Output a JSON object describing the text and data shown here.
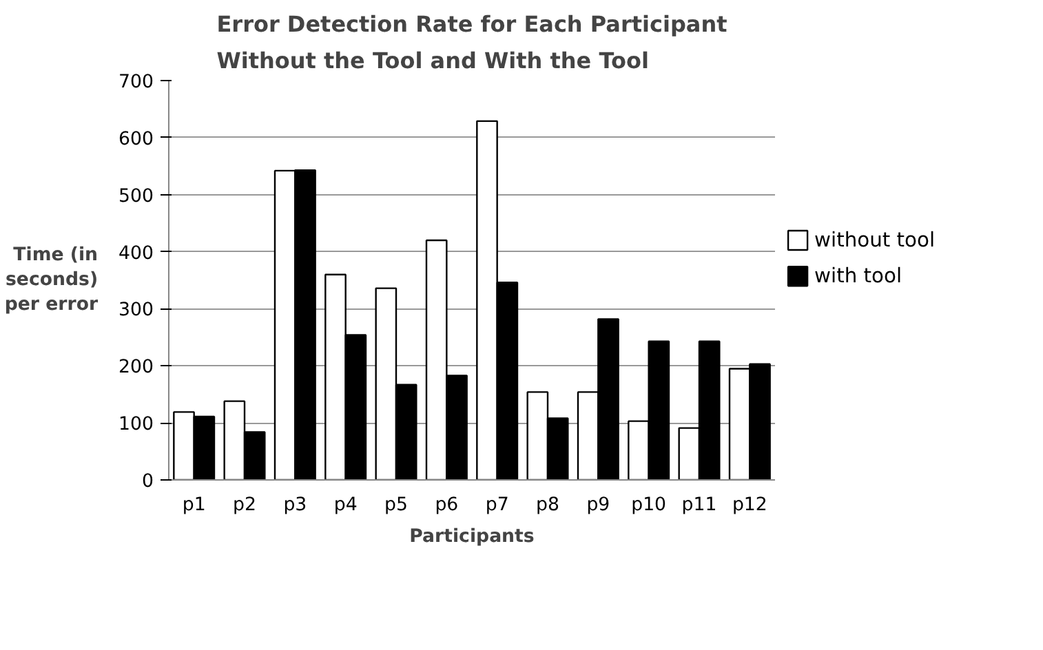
{
  "chart_data": {
    "type": "bar",
    "title": "Error Detection Rate for Each Participant Without the Tool and With the Tool",
    "xlabel": "Participants",
    "ylabel": "Time (in seconds) per error",
    "categories": [
      "p1",
      "p2",
      "p3",
      "p4",
      "p5",
      "p6",
      "p7",
      "p8",
      "p9",
      "p10",
      "p11",
      "p12"
    ],
    "series": [
      {
        "name": "without tool",
        "color": "#ffffff",
        "values": [
          119,
          138,
          542,
          360,
          336,
          420,
          629,
          154,
          154,
          103,
          91,
          195
        ]
      },
      {
        "name": "with tool",
        "color": "#000000",
        "values": [
          111,
          84,
          543,
          254,
          167,
          183,
          346,
          108,
          282,
          243,
          243,
          203
        ]
      }
    ],
    "ylim": [
      0,
      700
    ],
    "yticks": [
      0,
      100,
      200,
      300,
      400,
      500,
      600,
      700
    ],
    "grid": "y",
    "legend": "right"
  }
}
